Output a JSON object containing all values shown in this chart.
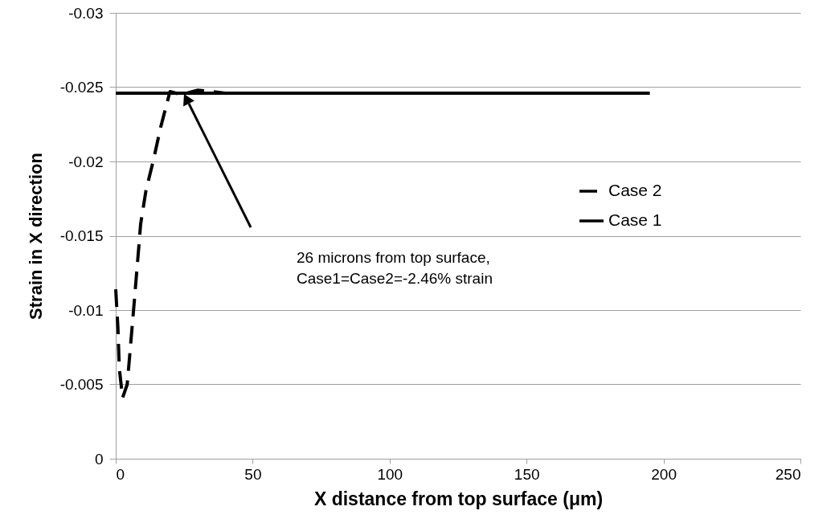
{
  "chart_data": {
    "type": "line",
    "xlabel": "X distance from top surface (μm)",
    "ylabel": "Strain in X direction",
    "xlim": [
      0,
      250
    ],
    "xticks": [
      0,
      50,
      100,
      150,
      200,
      250
    ],
    "ylim": [
      0,
      -0.03
    ],
    "yticks": [
      0,
      -0.005,
      -0.01,
      -0.015,
      -0.02,
      -0.025,
      -0.03
    ],
    "grid": "y",
    "legend": "right",
    "series": [
      {
        "name": "Case 2",
        "color": "#000000",
        "line_style": "dashed",
        "x": [
          0,
          0.8,
          1.3,
          2.5,
          4.2,
          6.6,
          8.4,
          9.1,
          11,
          13.9,
          16.4,
          19.8,
          24,
          30,
          40,
          195
        ],
        "values": [
          -0.0114,
          -0.0088,
          -0.0061,
          -0.0041,
          -0.005,
          -0.0102,
          -0.0142,
          -0.0158,
          -0.018,
          -0.0202,
          -0.0223,
          -0.0247,
          -0.0245,
          -0.0248,
          -0.0246,
          -0.0246
        ]
      },
      {
        "name": "Case 1",
        "color": "#000000",
        "line_style": "solid",
        "x": [
          0,
          195
        ],
        "values": [
          -0.0246,
          -0.0246
        ]
      }
    ],
    "annotations": [
      "26 microns from top surface, Case1=Case2=-2.46% strain"
    ]
  }
}
